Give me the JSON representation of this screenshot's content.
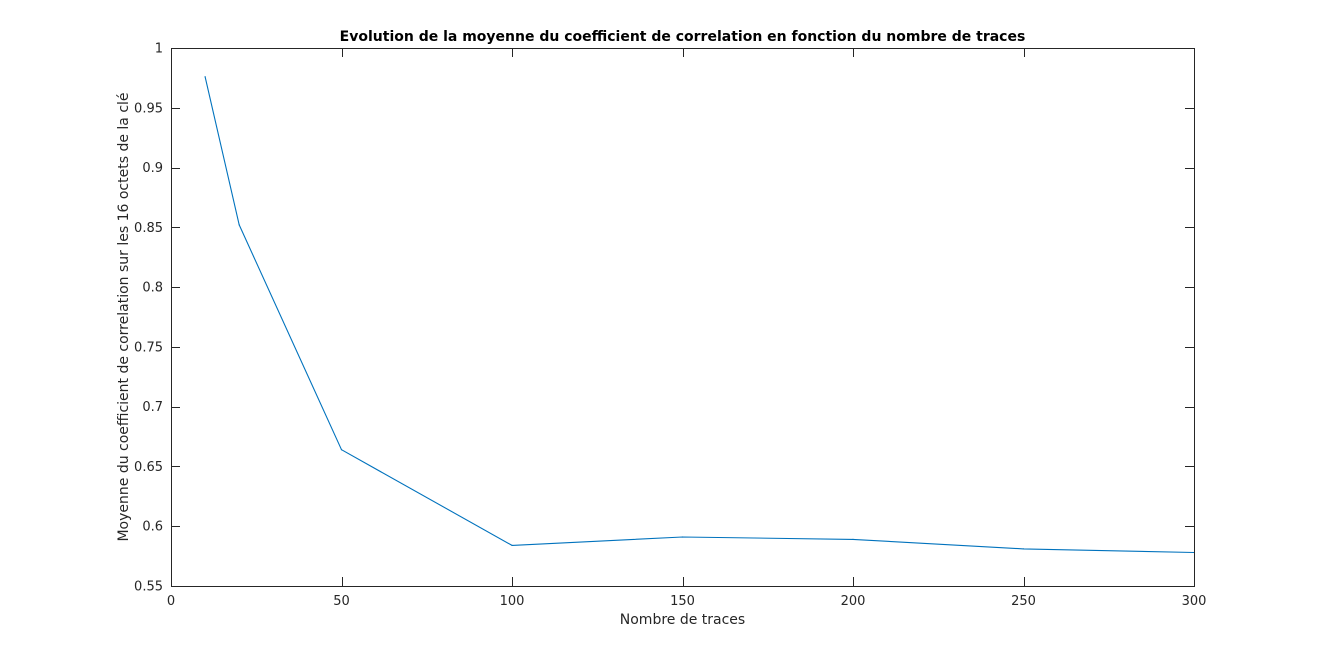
{
  "chart_data": {
    "type": "line",
    "title": "Evolution de la moyenne du coefficient de correlation en fonction du nombre de traces",
    "xlabel": "Nombre de traces",
    "ylabel": "Moyenne du coefficient de correlation sur les 16 octets de la clé",
    "xlim": [
      0,
      300
    ],
    "ylim": [
      0.55,
      1
    ],
    "xticks": [
      0,
      50,
      100,
      150,
      200,
      250,
      300
    ],
    "xtick_labels": [
      "0",
      "50",
      "100",
      "150",
      "200",
      "250",
      "300"
    ],
    "yticks": [
      0.55,
      0.6,
      0.65,
      0.7,
      0.75,
      0.8,
      0.85,
      0.9,
      0.95,
      1
    ],
    "ytick_labels": [
      "0.55",
      "0.6",
      "0.65",
      "0.7",
      "0.75",
      "0.8",
      "0.85",
      "0.9",
      "0.95",
      "1"
    ],
    "grid": false,
    "series": [
      {
        "color": "#0072BD",
        "x": [
          10,
          20,
          50,
          100,
          150,
          200,
          250,
          300
        ],
        "y": [
          0.976,
          0.852,
          0.664,
          0.584,
          0.591,
          0.589,
          0.581,
          0.578
        ]
      }
    ]
  }
}
